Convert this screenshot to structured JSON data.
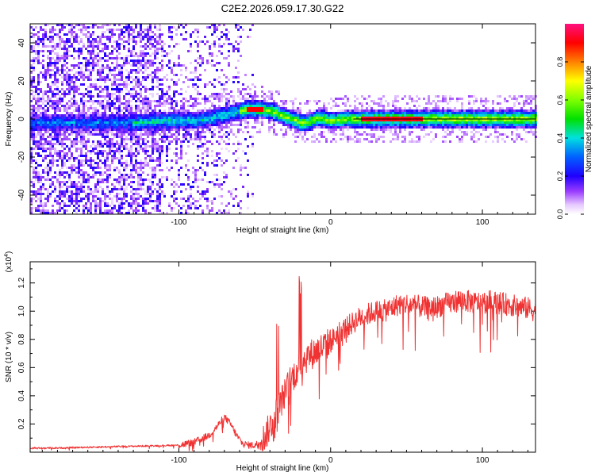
{
  "title": "C2E2.2026.059.17.30.G22",
  "colors": {
    "snr_line": "#f03232",
    "axis": "#000000",
    "background": "#ffffff"
  },
  "chart_data": [
    {
      "type": "heatmap",
      "name": "spectrogram",
      "xlabel": "Height of straight line (km)",
      "ylabel": "Frequency (Hz)",
      "xlim": [
        -198,
        135
      ],
      "ylim": [
        -50,
        50
      ],
      "x_ticks": [
        -100,
        0,
        100
      ],
      "y_ticks": [
        -40,
        -20,
        0,
        20,
        40
      ],
      "reference_line_hz": 0,
      "ridge": {
        "x_km": [
          -160,
          -130,
          -110,
          -90,
          -80,
          -70,
          -60,
          -55,
          -50,
          -45,
          -40,
          -35,
          -30,
          -25,
          -20,
          -15,
          -10,
          -5,
          0,
          10,
          20,
          40,
          60,
          80,
          100,
          120,
          135
        ],
        "freq_hz": [
          -2,
          -2,
          -1,
          -1,
          0,
          2,
          4,
          5,
          5,
          5,
          4,
          3,
          1,
          0,
          -2,
          -2,
          0,
          0,
          -1,
          0,
          0,
          0,
          0,
          0,
          0,
          0,
          0
        ]
      },
      "colorbar": {
        "label": "Normalized spectral amplitude",
        "range": [
          0.0,
          1.0
        ],
        "ticks": [
          0.0,
          0.2,
          0.4,
          0.6,
          0.8
        ]
      }
    },
    {
      "type": "line",
      "name": "snr",
      "xlabel": "Height of straight line (km)",
      "ylabel": "SNR (10 * v/v)",
      "y_multiplier": "(x10",
      "y_multiplier_exponent": "4",
      "y_multiplier_close": ")",
      "xlim": [
        -198,
        135
      ],
      "ylim": [
        0,
        1.35
      ],
      "x_ticks": [
        -100,
        0,
        100
      ],
      "y_ticks": [
        0.2,
        0.4,
        0.6,
        0.8,
        1.0,
        1.2
      ],
      "series": [
        {
          "name": "SNR",
          "x": [
            -198,
            -180,
            -160,
            -140,
            -120,
            -100,
            -90,
            -80,
            -75,
            -70,
            -66,
            -62,
            -58,
            -54,
            -50,
            -45,
            -40,
            -36,
            -33,
            -30,
            -27,
            -24,
            -21,
            -18,
            -15,
            -12,
            -9,
            -6,
            -3,
            0,
            5,
            10,
            15,
            20,
            25,
            30,
            35,
            40,
            45,
            50,
            55,
            60,
            65,
            70,
            75,
            80,
            85,
            90,
            95,
            100,
            105,
            110,
            115,
            120,
            125,
            130,
            135
          ],
          "y": [
            0.03,
            0.03,
            0.035,
            0.04,
            0.045,
            0.05,
            0.07,
            0.12,
            0.18,
            0.25,
            0.2,
            0.12,
            0.06,
            0.05,
            0.05,
            0.08,
            0.18,
            0.28,
            0.35,
            0.42,
            0.5,
            0.55,
            0.6,
            0.65,
            0.68,
            0.7,
            0.72,
            0.74,
            0.76,
            0.78,
            0.85,
            0.88,
            0.92,
            0.96,
            0.98,
            1.0,
            1.0,
            1.02,
            1.05,
            1.05,
            1.04,
            1.03,
            1.02,
            1.03,
            1.05,
            1.06,
            1.08,
            1.07,
            1.06,
            1.06,
            1.07,
            1.06,
            1.05,
            1.04,
            1.03,
            1.02,
            1.0
          ]
        }
      ]
    }
  ]
}
